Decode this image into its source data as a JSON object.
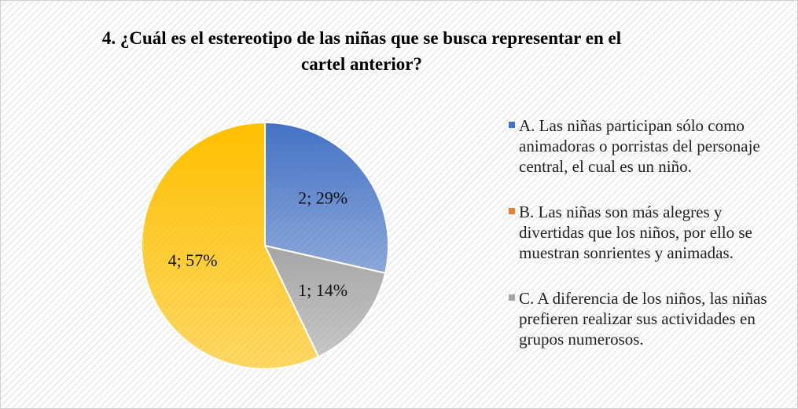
{
  "chart_data": {
    "type": "pie",
    "title": "4. ¿Cuál es el estereotipo de las niñas que se busca representar en el cartel anterior?",
    "categories": [
      "A. Las niñas participan sólo como animadoras o porristas del personaje central, el cual es un niño.",
      "B. Las niñas son más alegres y divertidas que los niños, por ello se muestran sonrientes y animadas.",
      "C. A diferencia de los niños, las niñas prefieren realizar sus actividades en grupos numerosos.",
      null
    ],
    "values": [
      2,
      0,
      1,
      4
    ],
    "value_labels": [
      "2; 29%",
      null,
      "1; 14%",
      "4; 57%"
    ],
    "colors": [
      "#4472c4",
      "#ed7d31",
      "#a5a5a5",
      "#ffc000"
    ],
    "legend": "right"
  }
}
